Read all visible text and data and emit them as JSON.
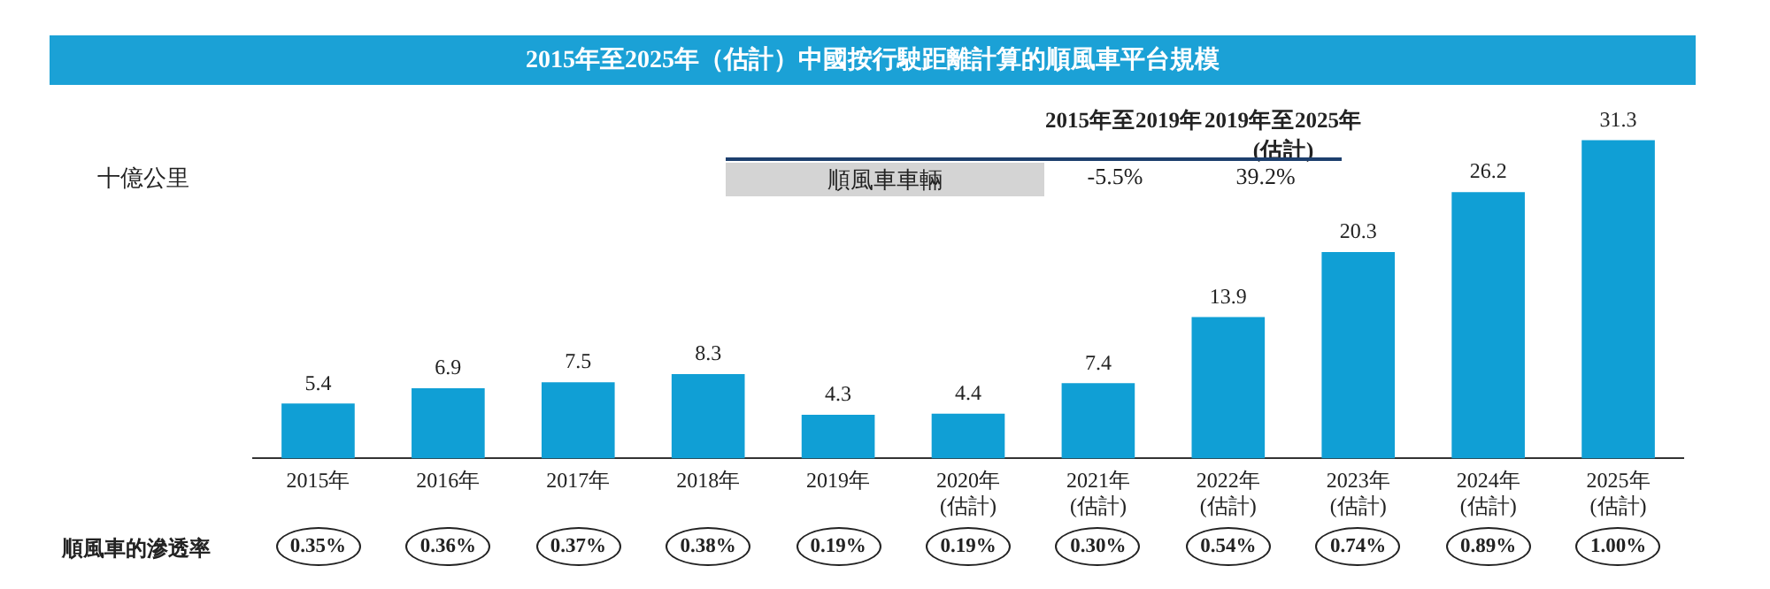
{
  "chart_data": {
    "type": "bar",
    "title": "2015年至2025年（估計）中國按行駛距離計算的順風車平台規模",
    "ylabel": "十億公里",
    "categories": [
      "2015年",
      "2016年",
      "2017年",
      "2018年",
      "2019年",
      "2020年\n(估計)",
      "2021年\n(估計)",
      "2022年\n(估計)",
      "2023年\n(估計)",
      "2024年\n(估計)",
      "2025年\n(估計)"
    ],
    "values": [
      5.4,
      6.9,
      7.5,
      8.3,
      4.3,
      4.4,
      7.4,
      13.9,
      20.3,
      26.2,
      31.3
    ],
    "color": "#109fd5",
    "data_labels": true,
    "annotations": [
      "2015年至2019年",
      "2019年至2025年\n(估計)",
      "順風車車輛",
      "-5.5%",
      "39.2%",
      "順風車的滲透率",
      "0.35%",
      "0.36%",
      "0.37%",
      "0.38%",
      "0.19%",
      "0.19%",
      "0.30%",
      "0.54%",
      "0.74%",
      "0.89%",
      "1.00%"
    ]
  }
}
